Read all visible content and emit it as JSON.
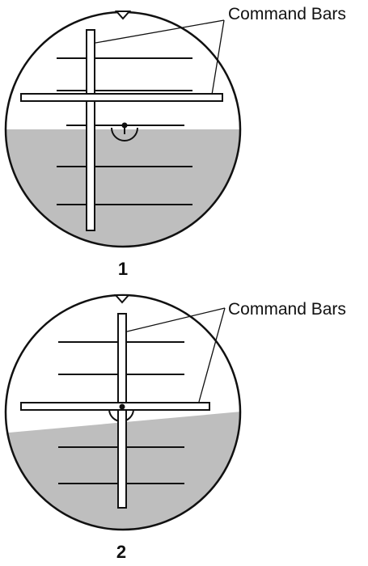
{
  "colors": {
    "sky": "#ffffff",
    "ground": "#bebebe",
    "outline": "#111111",
    "bar_fill": "#ffffff"
  },
  "instruments": [
    {
      "label": "Command Bars",
      "number": "1"
    },
    {
      "label": "Command Bars",
      "number": "2"
    }
  ]
}
